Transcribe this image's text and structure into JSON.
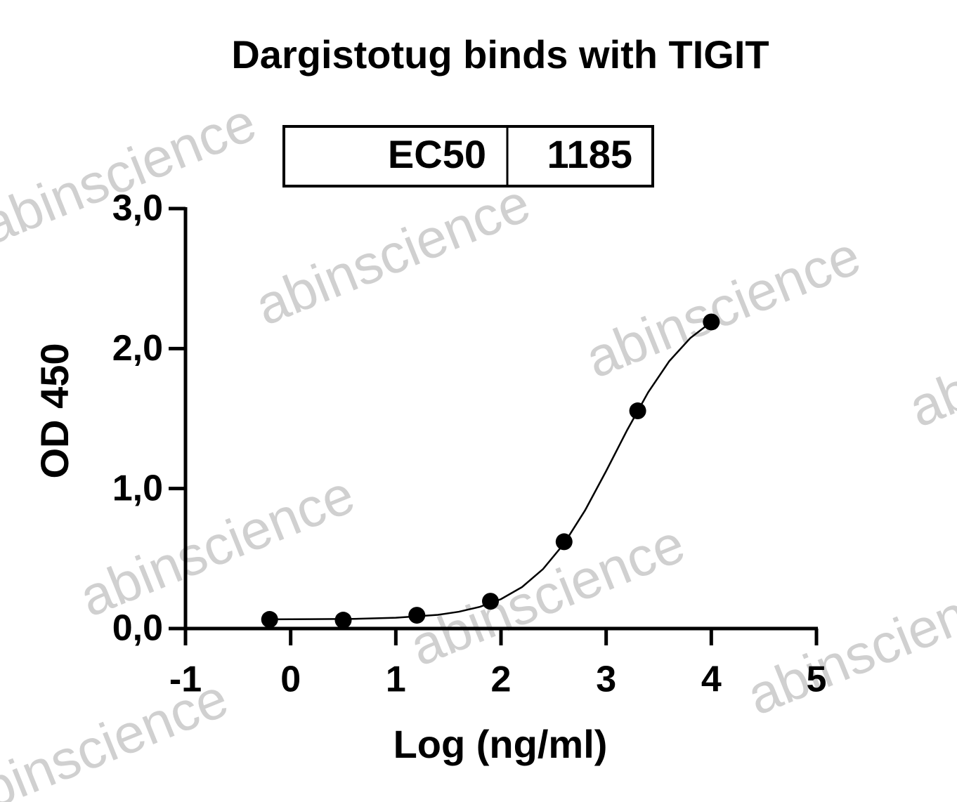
{
  "chart_data": {
    "type": "scatter",
    "title": "Dargistotug binds with TIGIT",
    "stats_table": {
      "label": "EC50",
      "value": 1185
    },
    "xlabel": "Log (ng/ml)",
    "ylabel": "OD 450",
    "watermark": "abinscience",
    "xlim": [
      -1,
      5
    ],
    "xticks": [
      -1,
      0,
      1,
      2,
      3,
      4,
      5
    ],
    "ylim": [
      0,
      3
    ],
    "yticks": [
      {
        "value": 0,
        "label": "0,0"
      },
      {
        "value": 1,
        "label": "1,0"
      },
      {
        "value": 2,
        "label": "2,0"
      },
      {
        "value": 3,
        "label": "3,0"
      }
    ],
    "series": [
      {
        "type": "scatter",
        "color": "#000000",
        "x": [
          -0.2,
          0.5,
          1.2,
          1.9,
          2.6,
          3.3,
          4.0
        ],
        "values": [
          0.065,
          0.06,
          0.095,
          0.195,
          0.62,
          1.555,
          2.19
        ]
      },
      {
        "type": "line",
        "color": "#000000",
        "x": [
          -0.2,
          0.2,
          0.6,
          1.0,
          1.4,
          1.6,
          1.8,
          2.0,
          2.2,
          2.4,
          2.6,
          2.8,
          3.0,
          3.2,
          3.4,
          3.6,
          3.8,
          4.0
        ],
        "values": [
          0.066,
          0.067,
          0.069,
          0.077,
          0.098,
          0.12,
          0.155,
          0.21,
          0.296,
          0.425,
          0.607,
          0.845,
          1.125,
          1.418,
          1.688,
          1.91,
          2.075,
          2.19
        ]
      }
    ]
  }
}
